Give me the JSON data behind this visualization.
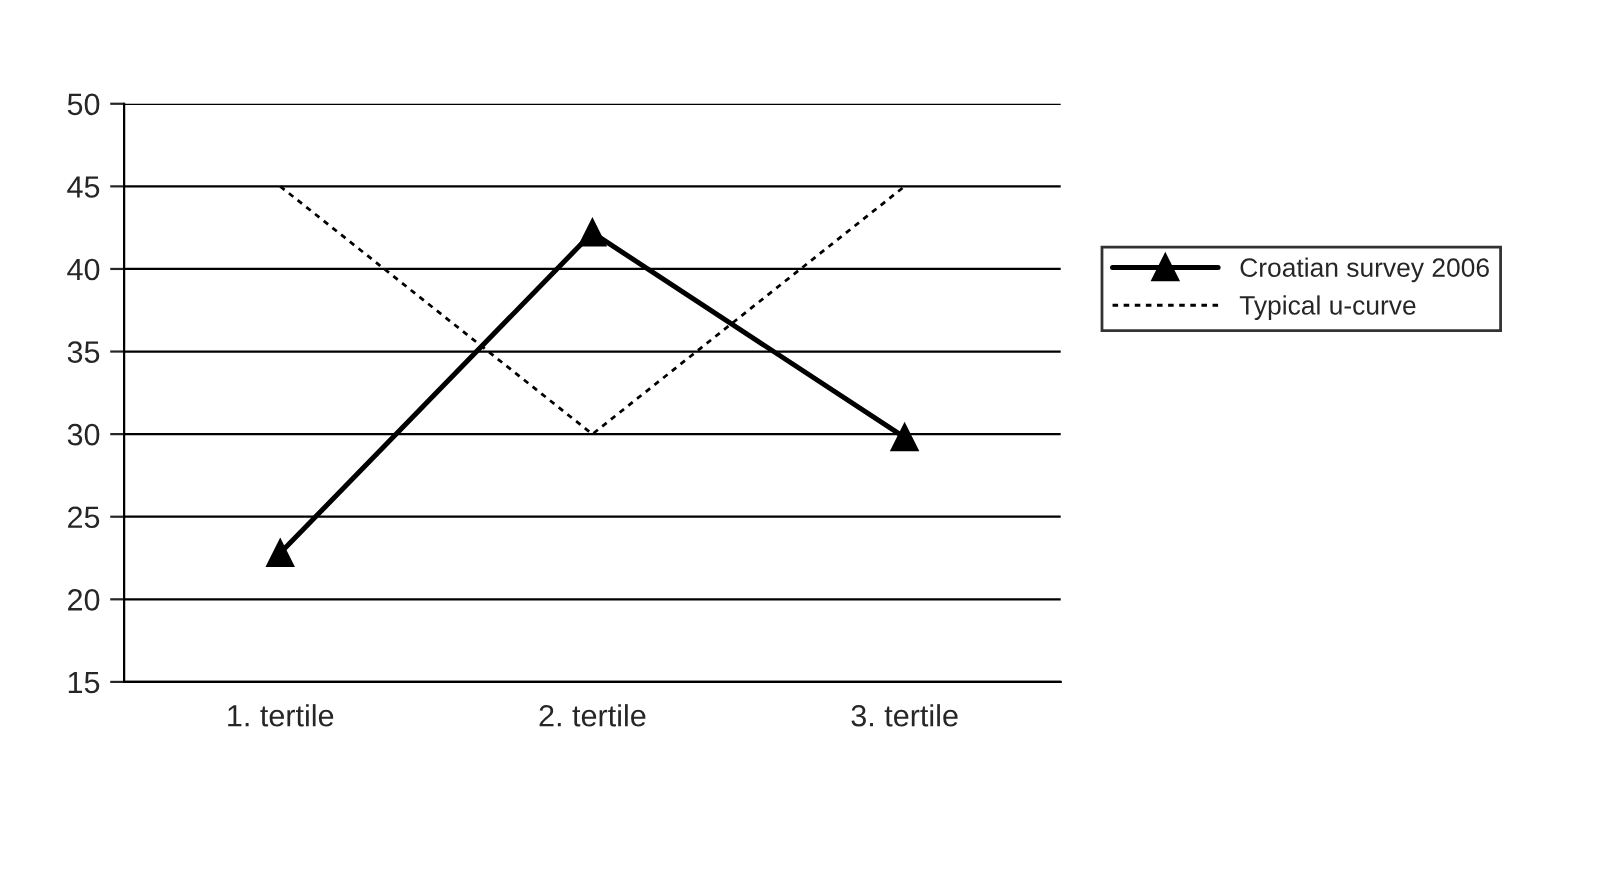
{
  "chart_data": {
    "type": "line",
    "categories": [
      "1. tertile",
      "2. tertile",
      "3. tertile"
    ],
    "series": [
      {
        "name": "Croatian survey 2006",
        "color": "#000000",
        "values": [
          22.8,
          42.2,
          29.8
        ],
        "marker": "triangle",
        "line_style": "solid"
      },
      {
        "name": "Typical u-curve",
        "color": "#000000",
        "values": [
          45,
          30,
          45
        ],
        "marker": "none",
        "line_style": "dotted"
      }
    ],
    "ylim": [
      15,
      50
    ],
    "yticks": [
      15,
      20,
      25,
      30,
      35,
      40,
      45,
      50
    ],
    "grid": "y",
    "legend": "right"
  }
}
